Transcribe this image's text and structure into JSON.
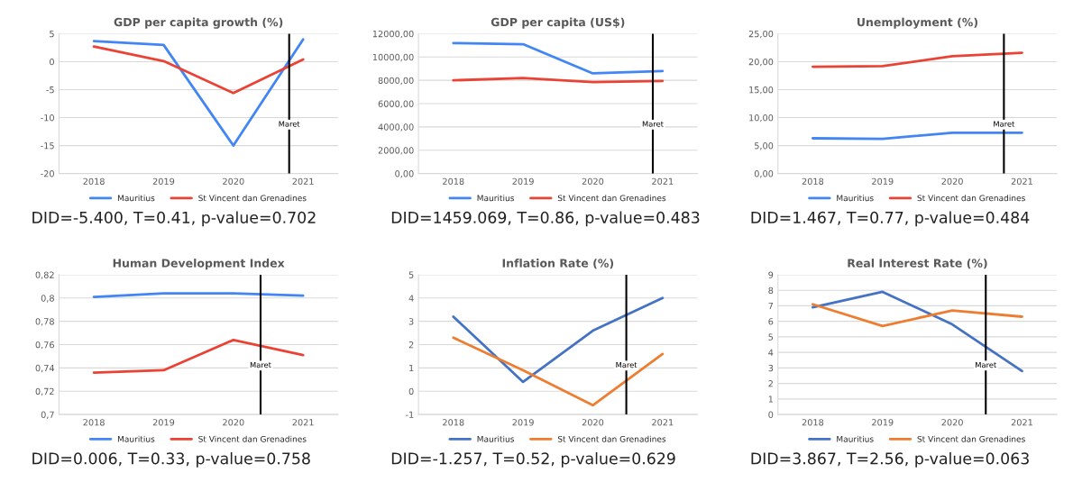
{
  "chart_data": [
    {
      "type": "line",
      "title": "GDP per capita growth (%)",
      "x": [
        2018,
        2019,
        2020,
        2021
      ],
      "xlim": [
        2017.5,
        2021.5
      ],
      "xticks": [
        2018,
        2019,
        2020,
        2021
      ],
      "ylim": [
        -20,
        5
      ],
      "yticks": [
        -20,
        -15,
        -10,
        -5,
        0,
        5
      ],
      "series": [
        {
          "name": "Mauritius",
          "color": "#4285f4",
          "values": [
            3.7,
            3.0,
            -15.0,
            4.0
          ]
        },
        {
          "name": "St Vincent dan Grenadines",
          "color": "#ea4335",
          "values": [
            2.7,
            0.1,
            -5.6,
            0.4
          ]
        }
      ],
      "ref_lines": [
        {
          "axis": "x",
          "value": 2020.8,
          "label": "Maret",
          "color": "#000000"
        }
      ],
      "grid": "y",
      "legend": "bottom",
      "annotations": [
        "DID=-5.400, T=0.41, p-value=0.702"
      ]
    },
    {
      "type": "line",
      "title": "GDP per capita (US$)",
      "x": [
        2018,
        2019,
        2020,
        2021
      ],
      "xlim": [
        2017.5,
        2021.5
      ],
      "xticks": [
        2018,
        2019,
        2020,
        2021
      ],
      "ylim": [
        0,
        12000
      ],
      "yticks": [
        {
          "value": 0,
          "label": "0,00"
        },
        {
          "value": 2000,
          "label": "2000,00"
        },
        {
          "value": 4000,
          "label": "4000,00"
        },
        {
          "value": 6000,
          "label": "6000,00"
        },
        {
          "value": 8000,
          "label": "8000,00"
        },
        {
          "value": 10000,
          "label": "10000,00"
        },
        {
          "value": 12000,
          "label": "12000,00"
        }
      ],
      "series": [
        {
          "name": "Mauritius",
          "color": "#4285f4",
          "values": [
            11200,
            11100,
            8600,
            8800
          ]
        },
        {
          "name": "St Vincent dan Grenadines",
          "color": "#ea4335",
          "values": [
            8000,
            8200,
            7850,
            7950
          ]
        }
      ],
      "ref_lines": [
        {
          "axis": "x",
          "value": 2020.86,
          "label": "Maret",
          "color": "#000000"
        }
      ],
      "grid": "y",
      "legend": "bottom",
      "annotations": [
        "DID=1459.069, T=0.86, p-value=0.483"
      ]
    },
    {
      "type": "line",
      "title": "Unemployment (%)",
      "x": [
        2018,
        2019,
        2020,
        2021
      ],
      "xlim": [
        2017.5,
        2021.5
      ],
      "xticks": [
        2018,
        2019,
        2020,
        2021
      ],
      "ylim": [
        0,
        25
      ],
      "yticks": [
        {
          "value": 0,
          "label": "0,00"
        },
        {
          "value": 5,
          "label": "5,00"
        },
        {
          "value": 10,
          "label": "10,00"
        },
        {
          "value": 15,
          "label": "15,00"
        },
        {
          "value": 20,
          "label": "20,00"
        },
        {
          "value": 25,
          "label": "25,00"
        }
      ],
      "series": [
        {
          "name": "Mauritius",
          "color": "#4285f4",
          "values": [
            6.3,
            6.2,
            7.3,
            7.3
          ]
        },
        {
          "name": "St Vincent dan Grenadines",
          "color": "#ea4335",
          "values": [
            19.1,
            19.2,
            21.0,
            21.6
          ]
        }
      ],
      "ref_lines": [
        {
          "axis": "x",
          "value": 2020.74,
          "label": "Maret",
          "color": "#000000"
        }
      ],
      "grid": "y",
      "legend": "bottom",
      "annotations": [
        "DID=1.467, T=0.77, p-value=0.484"
      ]
    },
    {
      "type": "line",
      "title": "Human Development Index",
      "x": [
        2018,
        2019,
        2020,
        2021
      ],
      "xlim": [
        2017.5,
        2021.5
      ],
      "xticks": [
        2018,
        2019,
        2020,
        2021
      ],
      "ylim": [
        0.7,
        0.82
      ],
      "yticks": [
        {
          "value": 0.7,
          "label": "0,7"
        },
        {
          "value": 0.72,
          "label": "0,72"
        },
        {
          "value": 0.74,
          "label": "0,74"
        },
        {
          "value": 0.76,
          "label": "0,76"
        },
        {
          "value": 0.78,
          "label": "0,78"
        },
        {
          "value": 0.8,
          "label": "0,8"
        },
        {
          "value": 0.82,
          "label": "0,82"
        }
      ],
      "series": [
        {
          "name": "Mauritius",
          "color": "#4285f4",
          "values": [
            0.801,
            0.804,
            0.804,
            0.802
          ]
        },
        {
          "name": "St Vincent dan Grenadines",
          "color": "#ea4335",
          "values": [
            0.736,
            0.738,
            0.764,
            0.751
          ]
        }
      ],
      "ref_lines": [
        {
          "axis": "x",
          "value": 2020.39,
          "label": "Maret",
          "color": "#000000"
        }
      ],
      "grid": "y",
      "legend": "bottom",
      "annotations": [
        "DID=0.006, T=0.33, p-value=0.758"
      ]
    },
    {
      "type": "line",
      "title": "Inflation Rate (%)",
      "x": [
        2018,
        2019,
        2020,
        2021
      ],
      "xlim": [
        2017.5,
        2021.5
      ],
      "xticks": [
        2018,
        2019,
        2020,
        2021
      ],
      "ylim": [
        -1,
        5
      ],
      "yticks": [
        -1,
        0,
        1,
        2,
        3,
        4,
        5
      ],
      "series": [
        {
          "name": "Mauritius",
          "color": "#4472c4",
          "values": [
            3.2,
            0.4,
            2.6,
            4.0
          ]
        },
        {
          "name": "St Vincent dan Grenadines",
          "color": "#ed7d31",
          "values": [
            2.3,
            0.9,
            -0.6,
            1.6
          ]
        }
      ],
      "ref_lines": [
        {
          "axis": "x",
          "value": 2020.48,
          "label": "Maret",
          "color": "#000000"
        }
      ],
      "grid": "y",
      "legend": "bottom",
      "annotations": [
        "DID=-1.257, T=0.52, p-value=0.629"
      ]
    },
    {
      "type": "line",
      "title": "Real Interest Rate (%)",
      "x": [
        2018,
        2019,
        2020,
        2021
      ],
      "xlim": [
        2017.5,
        2021.5
      ],
      "xticks": [
        2018,
        2019,
        2020,
        2021
      ],
      "ylim": [
        0,
        9
      ],
      "yticks": [
        0,
        1,
        2,
        3,
        4,
        5,
        6,
        7,
        8,
        9
      ],
      "series": [
        {
          "name": "Mauritius",
          "color": "#4472c4",
          "values": [
            6.9,
            7.9,
            5.8,
            2.8
          ]
        },
        {
          "name": "St Vincent dan Grenadines",
          "color": "#ed7d31",
          "values": [
            7.1,
            5.7,
            6.7,
            6.3
          ]
        }
      ],
      "ref_lines": [
        {
          "axis": "x",
          "value": 2020.48,
          "label": "Maret",
          "color": "#000000"
        }
      ],
      "grid": "y",
      "legend": "bottom",
      "annotations": [
        "DID=3.867, T=2.56, p-value=0.063"
      ]
    }
  ]
}
